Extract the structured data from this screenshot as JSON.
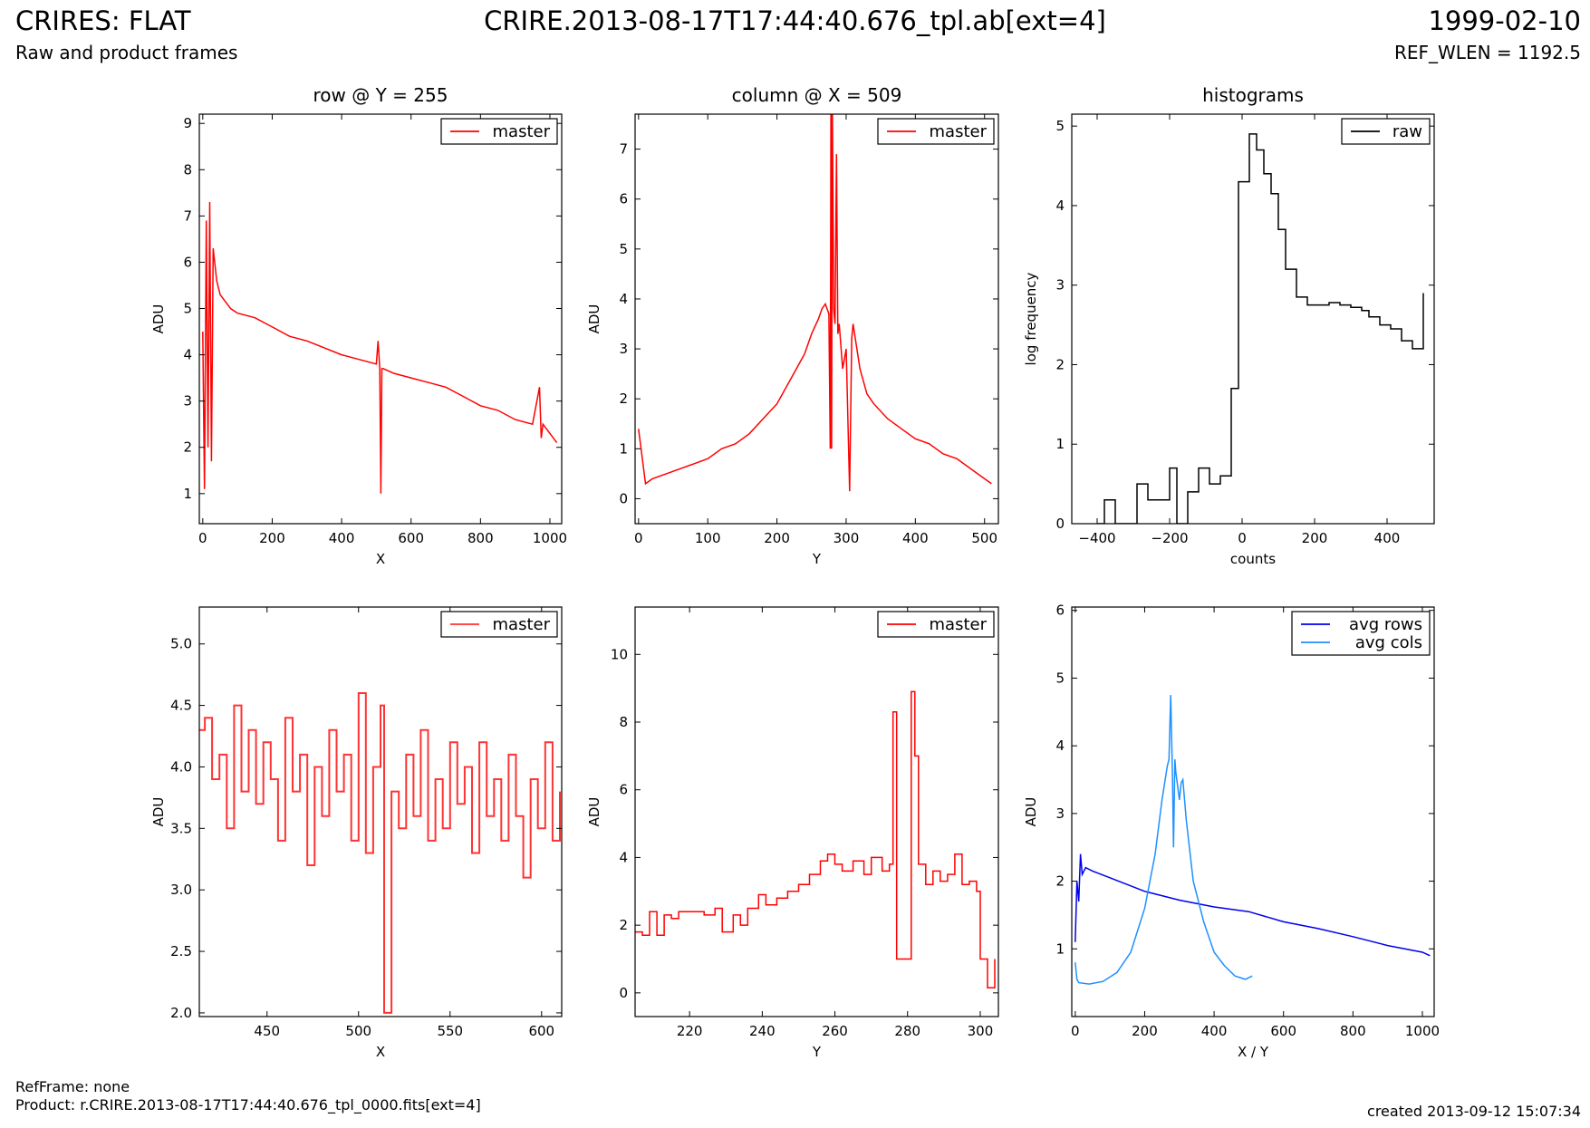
{
  "header": {
    "title_left": "CRIRES: FLAT",
    "subtitle_left": "Raw and product frames",
    "title_center": "CRIRE.2013-08-17T17:44:40.676_tpl.ab[ext=4]",
    "title_right": "1999-02-10",
    "subtitle_right": "REF_WLEN = 1192.5"
  },
  "footer": {
    "refframe": "RefFrame: none",
    "product": "Product: r.CRIRE.2013-08-17T17:44:40.676_tpl_0000.fits[ext=4]",
    "created": "created 2013-09-12 15:07:34"
  },
  "chart_data": [
    {
      "id": "row",
      "type": "line",
      "title": "row @ Y = 255",
      "xlabel": "X",
      "ylabel": "ADU",
      "xlim": [
        -10,
        1034
      ],
      "ylim": [
        0.35,
        9.2
      ],
      "xticks": [
        0,
        200,
        400,
        600,
        800,
        1000
      ],
      "xtick_labels": [
        "0",
        "200",
        "400",
        "600",
        "800",
        "1000"
      ],
      "yticks": [
        1,
        2,
        3,
        4,
        5,
        6,
        7,
        8,
        9
      ],
      "ytick_labels": [
        "1",
        "2",
        "3",
        "4",
        "5",
        "6",
        "7",
        "8",
        "9"
      ],
      "legend": "top-right",
      "series": [
        {
          "name": "master",
          "color": "#ff0000",
          "x": [
            0,
            5,
            10,
            15,
            20,
            25,
            30,
            40,
            50,
            60,
            80,
            100,
            150,
            200,
            250,
            300,
            350,
            400,
            450,
            500,
            505,
            510,
            513,
            516,
            520,
            550,
            600,
            650,
            700,
            750,
            800,
            850,
            900,
            950,
            970,
            975,
            980,
            1000,
            1020
          ],
          "y": [
            4.5,
            1.1,
            6.9,
            2.0,
            7.3,
            1.7,
            6.3,
            5.6,
            5.3,
            5.2,
            5.0,
            4.9,
            4.8,
            4.6,
            4.4,
            4.3,
            4.15,
            4.0,
            3.9,
            3.8,
            4.3,
            3.7,
            1.0,
            3.7,
            3.7,
            3.6,
            3.5,
            3.4,
            3.3,
            3.1,
            2.9,
            2.8,
            2.6,
            2.5,
            3.3,
            2.2,
            2.5,
            2.3,
            2.1
          ]
        }
      ]
    },
    {
      "id": "column",
      "type": "line",
      "title": "column @ X = 509",
      "xlabel": "Y",
      "ylabel": "ADU",
      "xlim": [
        -5,
        520
      ],
      "ylim": [
        -0.5,
        7.7
      ],
      "xticks": [
        0,
        100,
        200,
        300,
        400,
        500
      ],
      "xtick_labels": [
        "0",
        "100",
        "200",
        "300",
        "400",
        "500"
      ],
      "yticks": [
        0,
        1,
        2,
        3,
        4,
        5,
        6,
        7
      ],
      "ytick_labels": [
        "0",
        "1",
        "2",
        "3",
        "4",
        "5",
        "6",
        "7"
      ],
      "legend": "top-right",
      "series": [
        {
          "name": "master",
          "color": "#ff0000",
          "x": [
            0,
            10,
            20,
            40,
            60,
            80,
            100,
            120,
            140,
            160,
            180,
            200,
            220,
            240,
            250,
            260,
            265,
            270,
            275,
            277,
            278,
            279,
            280,
            282,
            284,
            286,
            288,
            290,
            295,
            300,
            305,
            308,
            310,
            320,
            330,
            340,
            360,
            380,
            400,
            420,
            440,
            460,
            480,
            500,
            510
          ],
          "y": [
            1.4,
            0.3,
            0.4,
            0.5,
            0.6,
            0.7,
            0.8,
            1.0,
            1.1,
            1.3,
            1.6,
            1.9,
            2.4,
            2.9,
            3.3,
            3.6,
            3.8,
            3.9,
            3.7,
            1.0,
            8.0,
            1.0,
            8.0,
            3.8,
            3.5,
            6.9,
            3.3,
            3.5,
            2.6,
            3.0,
            0.15,
            3.2,
            3.5,
            2.6,
            2.1,
            1.9,
            1.6,
            1.4,
            1.2,
            1.1,
            0.9,
            0.8,
            0.6,
            0.4,
            0.3
          ]
        }
      ]
    },
    {
      "id": "histograms",
      "type": "line",
      "title": "histograms",
      "xlabel": "counts",
      "ylabel": "log frequency",
      "xlim": [
        -470,
        530
      ],
      "ylim": [
        0,
        5.15
      ],
      "xticks": [
        -400,
        -200,
        0,
        200,
        400
      ],
      "xtick_labels": [
        "−400",
        "−200",
        "0",
        "200",
        "400"
      ],
      "yticks": [
        0,
        1,
        2,
        3,
        4,
        5
      ],
      "ytick_labels": [
        "0",
        "1",
        "2",
        "3",
        "4",
        "5"
      ],
      "legend": "top-right",
      "series": [
        {
          "name": "raw",
          "color": "#000000",
          "step": true,
          "x": [
            -400,
            -380,
            -350,
            -320,
            -290,
            -260,
            -230,
            -200,
            -180,
            -150,
            -120,
            -90,
            -60,
            -30,
            -10,
            20,
            40,
            60,
            80,
            100,
            120,
            150,
            180,
            210,
            240,
            270,
            300,
            330,
            350,
            380,
            410,
            440,
            470,
            500
          ],
          "y": [
            0,
            0.3,
            0,
            0,
            0.5,
            0.3,
            0.3,
            0.7,
            0,
            0.4,
            0.7,
            0.5,
            0.6,
            1.7,
            4.3,
            4.9,
            4.7,
            4.4,
            4.15,
            3.7,
            3.2,
            2.85,
            2.75,
            2.75,
            2.78,
            2.75,
            2.72,
            2.68,
            2.6,
            2.5,
            2.45,
            2.3,
            2.2,
            2.9
          ]
        }
      ]
    },
    {
      "id": "row-zoom",
      "type": "line",
      "title": "",
      "xlabel": "X",
      "ylabel": "ADU",
      "xlim": [
        413,
        611
      ],
      "ylim": [
        1.97,
        5.3
      ],
      "xticks": [
        450,
        500,
        550,
        600
      ],
      "xtick_labels": [
        "450",
        "500",
        "550",
        "600"
      ],
      "yticks": [
        2.0,
        2.5,
        3.0,
        3.5,
        4.0,
        4.5,
        5.0
      ],
      "ytick_labels": [
        "2.0",
        "2.5",
        "3.0",
        "3.5",
        "4.0",
        "4.5",
        "5.0"
      ],
      "legend": "top-right",
      "series": [
        {
          "name": "master",
          "color": "#ff3333",
          "step": true,
          "x": [
            413,
            416,
            420,
            424,
            428,
            432,
            436,
            440,
            444,
            448,
            452,
            456,
            460,
            464,
            468,
            472,
            476,
            480,
            484,
            488,
            492,
            496,
            500,
            504,
            508,
            512,
            514,
            518,
            522,
            526,
            530,
            534,
            538,
            542,
            546,
            550,
            554,
            558,
            562,
            566,
            570,
            574,
            578,
            582,
            586,
            590,
            594,
            598,
            602,
            606,
            610
          ],
          "y": [
            4.3,
            4.4,
            3.9,
            4.1,
            3.5,
            4.5,
            3.8,
            4.3,
            3.7,
            4.2,
            3.9,
            3.4,
            4.4,
            3.8,
            4.1,
            3.2,
            4.0,
            3.6,
            4.3,
            3.8,
            4.1,
            3.4,
            4.6,
            3.3,
            4.0,
            4.5,
            2.0,
            3.8,
            3.5,
            4.1,
            3.6,
            4.3,
            3.4,
            3.9,
            3.5,
            4.2,
            3.7,
            4.0,
            3.3,
            4.2,
            3.6,
            3.9,
            3.4,
            4.1,
            3.6,
            3.1,
            3.9,
            3.5,
            4.2,
            3.4,
            3.8
          ]
        }
      ]
    },
    {
      "id": "column-zoom",
      "type": "line",
      "title": "",
      "xlabel": "Y",
      "ylabel": "ADU",
      "xlim": [
        205,
        305
      ],
      "ylim": [
        -0.7,
        11.4
      ],
      "xticks": [
        220,
        240,
        260,
        280,
        300
      ],
      "xtick_labels": [
        "220",
        "240",
        "260",
        "280",
        "300"
      ],
      "yticks": [
        0,
        2,
        4,
        6,
        8,
        10
      ],
      "ytick_labels": [
        "0",
        "2",
        "4",
        "6",
        "8",
        "10"
      ],
      "legend": "top-right",
      "series": [
        {
          "name": "master",
          "color": "#ff0000",
          "step": true,
          "x": [
            205,
            207,
            209,
            211,
            213,
            215,
            217,
            220,
            224,
            227,
            229,
            232,
            234,
            236,
            239,
            241,
            244,
            247,
            250,
            253,
            256,
            258,
            260,
            262,
            265,
            268,
            270,
            273,
            275,
            276,
            277,
            279,
            281,
            282,
            283,
            285,
            287,
            289,
            291,
            293,
            295,
            297,
            299,
            300,
            302,
            304
          ],
          "y": [
            1.8,
            1.7,
            2.4,
            1.7,
            2.3,
            2.2,
            2.4,
            2.4,
            2.3,
            2.5,
            1.8,
            2.3,
            2.0,
            2.5,
            2.9,
            2.6,
            2.8,
            3.0,
            3.2,
            3.5,
            3.9,
            4.1,
            3.8,
            3.6,
            3.9,
            3.5,
            4.0,
            3.6,
            3.8,
            8.3,
            1.0,
            1.0,
            8.9,
            7.0,
            3.8,
            3.2,
            3.6,
            3.3,
            3.5,
            4.1,
            3.2,
            3.3,
            3.0,
            1.0,
            0.15,
            1.0
          ]
        }
      ]
    },
    {
      "id": "avg",
      "type": "line",
      "title": "",
      "xlabel": "X / Y",
      "ylabel": "ADU",
      "xlim": [
        -10,
        1034
      ],
      "ylim": [
        0,
        6.05
      ],
      "xticks": [
        0,
        200,
        400,
        600,
        800,
        1000
      ],
      "xtick_labels": [
        "0",
        "200",
        "400",
        "600",
        "800",
        "1000"
      ],
      "yticks": [
        1,
        2,
        3,
        4,
        5,
        6
      ],
      "ytick_labels": [
        "1",
        "2",
        "3",
        "4",
        "5",
        "6"
      ],
      "legend": "top-right",
      "series": [
        {
          "name": "avg rows",
          "color": "#0000ee",
          "x": [
            0,
            5,
            10,
            15,
            20,
            30,
            50,
            100,
            200,
            300,
            400,
            500,
            600,
            700,
            800,
            900,
            1000,
            1022
          ],
          "y": [
            1.1,
            2.0,
            1.7,
            2.4,
            2.1,
            2.2,
            2.15,
            2.05,
            1.85,
            1.72,
            1.62,
            1.55,
            1.4,
            1.3,
            1.18,
            1.05,
            0.95,
            0.9
          ]
        },
        {
          "name": "avg cols",
          "color": "#1e90ff",
          "x": [
            0,
            5,
            10,
            40,
            80,
            120,
            160,
            200,
            230,
            250,
            265,
            270,
            275,
            280,
            283,
            287,
            290,
            295,
            300,
            305,
            310,
            320,
            340,
            370,
            400,
            430,
            460,
            490,
            510
          ],
          "y": [
            0.8,
            0.55,
            0.5,
            0.48,
            0.52,
            0.65,
            0.95,
            1.6,
            2.4,
            3.2,
            3.7,
            3.8,
            4.75,
            3.6,
            2.5,
            3.8,
            3.6,
            3.4,
            3.2,
            3.45,
            3.5,
            2.9,
            2.0,
            1.4,
            0.95,
            0.75,
            0.6,
            0.55,
            0.6
          ]
        }
      ]
    }
  ]
}
